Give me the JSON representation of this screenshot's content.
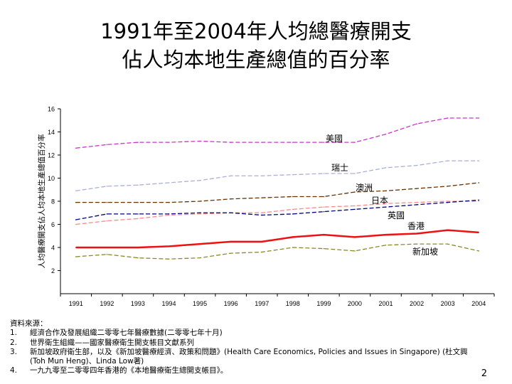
{
  "title": {
    "line1": "1991年至2004年人均總醫療開支",
    "line2": "佔人均本地生產總值的百分率"
  },
  "chart_data": {
    "type": "line",
    "ylabel": "人均醫療開支佔人均本地生產總值百分率",
    "ylim": [
      0,
      16
    ],
    "yticks": [
      2,
      4,
      6,
      8,
      10,
      12,
      14,
      16
    ],
    "grid": false,
    "legend": "inline labels at right end of lines",
    "x": [
      "1991",
      "1992",
      "1993",
      "1994",
      "1995",
      "1996",
      "1997",
      "1998",
      "1999",
      "2000",
      "2001",
      "2002",
      "2003",
      "2004"
    ],
    "series": [
      {
        "name": "美國",
        "color": "#cc33cc",
        "dash": "dash",
        "values": [
          12.6,
          12.9,
          13.1,
          13.1,
          13.2,
          13.1,
          13.1,
          13.1,
          13.1,
          13.1,
          13.8,
          14.7,
          15.2,
          15.2
        ]
      },
      {
        "name": "瑞士",
        "color": "#aab0d8",
        "dash": "dash",
        "values": [
          8.9,
          9.3,
          9.4,
          9.6,
          9.8,
          10.2,
          10.2,
          10.3,
          10.4,
          10.4,
          10.9,
          11.1,
          11.5,
          11.5
        ]
      },
      {
        "name": "澳洲",
        "color": "#663300",
        "dash": "dash",
        "values": [
          7.9,
          7.9,
          7.9,
          7.9,
          8.0,
          8.2,
          8.3,
          8.4,
          8.4,
          8.8,
          8.9,
          9.1,
          9.3,
          9.6
        ]
      },
      {
        "name": "日本",
        "color": "#ff8888",
        "dash": "dash",
        "values": [
          6.0,
          6.3,
          6.5,
          6.8,
          6.9,
          7.0,
          7.0,
          7.3,
          7.5,
          7.6,
          7.8,
          7.9,
          8.0,
          8.0
        ]
      },
      {
        "name": "英國",
        "color": "#000080",
        "dash": "dash",
        "values": [
          6.4,
          6.9,
          6.9,
          6.9,
          7.0,
          7.0,
          6.8,
          6.9,
          7.1,
          7.3,
          7.5,
          7.7,
          7.9,
          8.1
        ]
      },
      {
        "name": "香港",
        "color": "#ee1111",
        "dash": "solid",
        "values": [
          4.0,
          4.0,
          4.0,
          4.1,
          4.3,
          4.5,
          4.5,
          4.9,
          5.1,
          4.9,
          5.1,
          5.2,
          5.5,
          5.3
        ]
      },
      {
        "name": "新加坡",
        "color": "#8a8a2a",
        "dash": "dash",
        "values": [
          3.2,
          3.4,
          3.1,
          3.0,
          3.1,
          3.5,
          3.6,
          4.0,
          3.9,
          3.7,
          4.2,
          4.3,
          4.3,
          3.7
        ]
      }
    ]
  },
  "sources": {
    "heading": "資料來源：",
    "items": [
      {
        "num": "1.",
        "text": "經濟合作及發展組織二零零七年醫療數據(二零零七年十月)"
      },
      {
        "num": "2.",
        "text": "世界衛生組織——國家醫療衛生開支帳目文獻系列"
      },
      {
        "num": "3.",
        "text": "新加坡政府衛生部，以及《新加坡醫療經濟、政策和問題》(Health Care Economics, Policies and Issues in Singapore) (杜文興(Toh Mun Heng)、Linda Low著)"
      },
      {
        "num": "4.",
        "text": "一九九零至二零零四年香港的《本地醫療衛生總開支帳目》。"
      }
    ]
  },
  "page_number": "2"
}
